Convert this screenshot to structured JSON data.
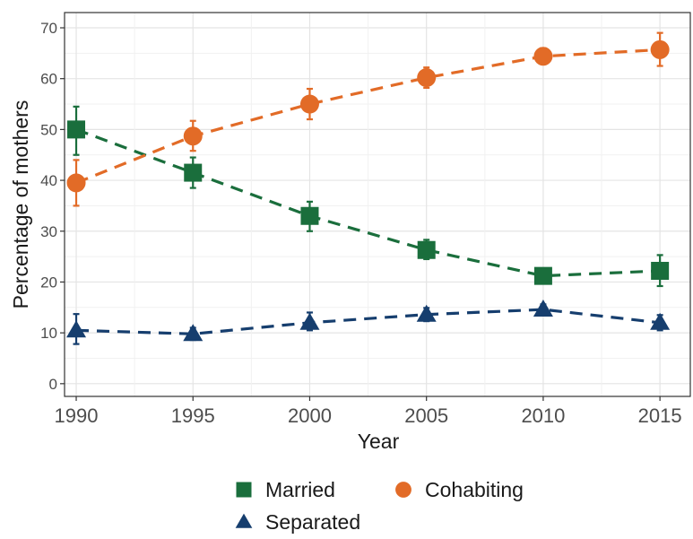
{
  "chart_data": {
    "type": "line",
    "title": "",
    "xlabel": "Year",
    "ylabel": "Percentage of mothers",
    "x": [
      1990,
      1995,
      2000,
      2005,
      2010,
      2015
    ],
    "xlim": [
      1989.5,
      2016.3
    ],
    "ylim": [
      -2.5,
      73
    ],
    "x_ticks": [
      "1990",
      "1995",
      "2000",
      "2005",
      "2010",
      "2015"
    ],
    "y_ticks": [
      "0",
      "10",
      "20",
      "30",
      "40",
      "50",
      "60",
      "70"
    ],
    "grid": true,
    "line_style": "dashed",
    "legend_position": "bottom",
    "series": [
      {
        "name": "Married",
        "color": "#1a6e3c",
        "marker": "square",
        "values": [
          50,
          41.5,
          33,
          26.3,
          21.2,
          22.2
        ],
        "error_low": [
          45,
          38.5,
          30,
          24.5,
          20.0,
          19.2
        ],
        "error_high": [
          54.5,
          44.5,
          35.8,
          28.3,
          22.6,
          25.3
        ]
      },
      {
        "name": "Cohabiting",
        "color": "#e26b27",
        "marker": "circle",
        "values": [
          39.5,
          48.7,
          55,
          60.2,
          64.4,
          65.7
        ],
        "error_low": [
          35,
          45.8,
          52,
          58.2,
          63.0,
          62.5
        ],
        "error_high": [
          44,
          51.7,
          58,
          62.2,
          66.0,
          69.0
        ]
      },
      {
        "name": "Separated",
        "color": "#163e6e",
        "marker": "triangle",
        "values": [
          10.5,
          9.8,
          12,
          13.6,
          14.6,
          12
        ],
        "error_low": [
          7.8,
          8.6,
          10.5,
          12.3,
          13.6,
          10.5
        ],
        "error_high": [
          13.7,
          11.0,
          14.0,
          14.9,
          15.6,
          13.5
        ]
      }
    ]
  }
}
